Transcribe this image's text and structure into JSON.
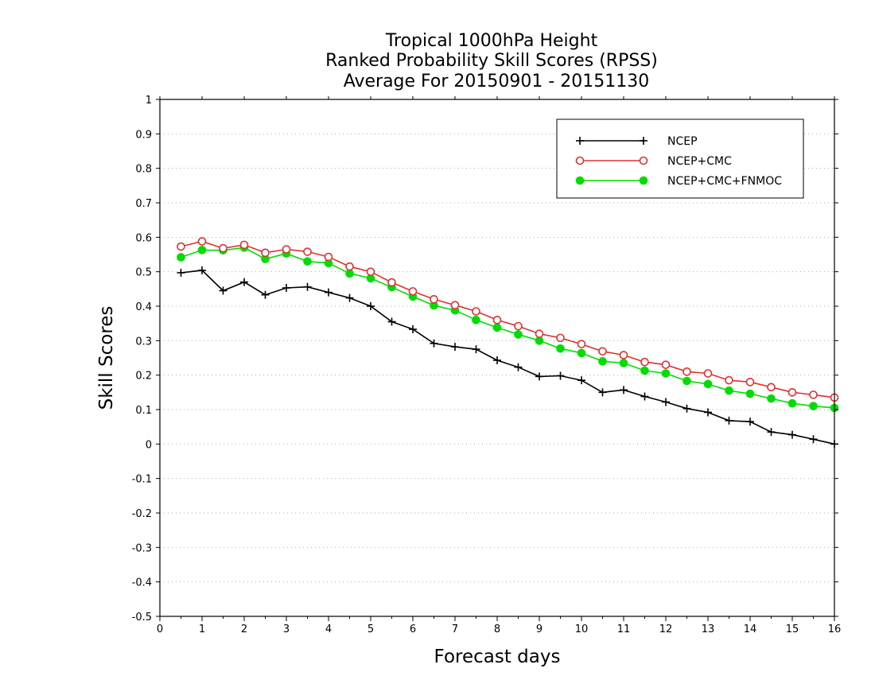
{
  "chart_data": {
    "type": "line",
    "title": [
      "Tropical 1000hPa Height",
      "Ranked Probability Skill Scores (RPSS)",
      "Average For 20150901 - 20151130"
    ],
    "xlabel": "Forecast days",
    "ylabel": "Skill Scores",
    "xlim": [
      0,
      16
    ],
    "ylim": [
      -0.5,
      1
    ],
    "xticks": [
      "0",
      "1",
      "2",
      "3",
      "4",
      "5",
      "6",
      "7",
      "8",
      "9",
      "10",
      "11",
      "12",
      "13",
      "14",
      "15",
      "16"
    ],
    "yticks": [
      "-0.5",
      "-0.4",
      "-0.3",
      "-0.2",
      "-0.1",
      "0",
      "0.1",
      "0.2",
      "0.3",
      "0.4",
      "0.5",
      "0.6",
      "0.7",
      "0.8",
      "0.9",
      "1"
    ],
    "grid": "horizontal dotted",
    "legend_position": "top-right",
    "x": [
      0.5,
      1,
      1.5,
      2,
      2.5,
      3,
      3.5,
      4,
      4.5,
      5,
      5.5,
      6,
      6.5,
      7,
      7.5,
      8,
      8.5,
      9,
      9.5,
      10,
      10.5,
      11,
      11.5,
      12,
      12.5,
      13,
      13.5,
      14,
      14.5,
      15,
      15.5,
      16
    ],
    "series": [
      {
        "name": "NCEP",
        "color": "#000000",
        "marker": "plus",
        "values": [
          0.497,
          0.504,
          0.445,
          0.47,
          0.433,
          0.453,
          0.456,
          0.44,
          0.424,
          0.4,
          0.355,
          0.333,
          0.292,
          0.282,
          0.275,
          0.243,
          0.223,
          0.196,
          0.198,
          0.185,
          0.15,
          0.157,
          0.138,
          0.122,
          0.103,
          0.092,
          0.068,
          0.065,
          0.035,
          0.027,
          0.014,
          0.0
        ]
      },
      {
        "name": "NCEP+CMC",
        "color": "#e03030",
        "marker": "open-circle",
        "values": [
          0.573,
          0.588,
          0.568,
          0.578,
          0.555,
          0.565,
          0.558,
          0.543,
          0.515,
          0.5,
          0.469,
          0.443,
          0.42,
          0.403,
          0.385,
          0.36,
          0.342,
          0.32,
          0.308,
          0.29,
          0.269,
          0.258,
          0.238,
          0.23,
          0.21,
          0.205,
          0.185,
          0.18,
          0.165,
          0.15,
          0.143,
          0.135
        ]
      },
      {
        "name": "NCEP+CMC+FNMOC",
        "color": "#00dd00",
        "marker": "filled-circle",
        "values": [
          0.542,
          0.563,
          0.562,
          0.57,
          0.537,
          0.553,
          0.53,
          0.525,
          0.495,
          0.481,
          0.455,
          0.428,
          0.402,
          0.388,
          0.36,
          0.338,
          0.318,
          0.3,
          0.277,
          0.264,
          0.24,
          0.235,
          0.213,
          0.205,
          0.183,
          0.174,
          0.155,
          0.146,
          0.132,
          0.118,
          0.11,
          0.105
        ]
      }
    ]
  }
}
